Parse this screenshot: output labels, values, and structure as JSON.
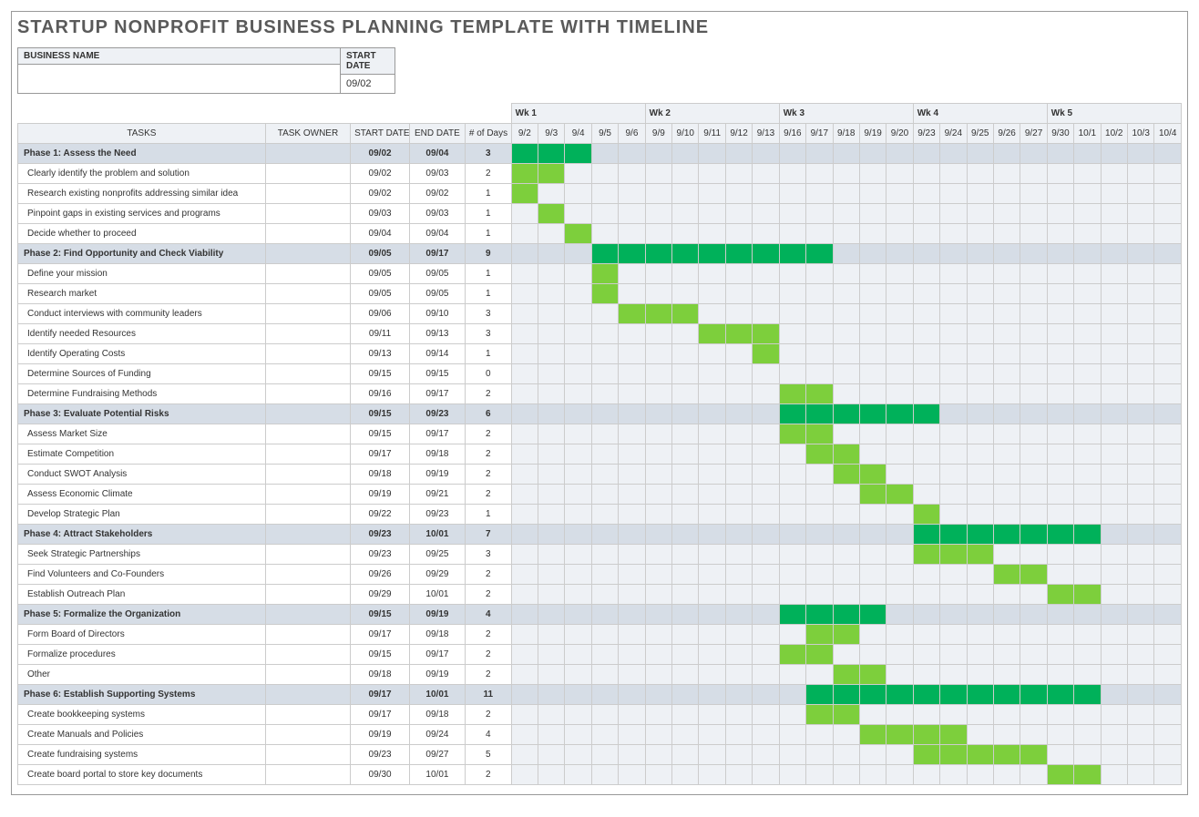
{
  "title": "STARTUP NONPROFIT BUSINESS PLANNING TEMPLATE WITH TIMELINE",
  "header": {
    "business_name_label": "BUSINESS NAME",
    "business_name_value": "",
    "start_date_label": "START DATE",
    "start_date_value": "09/02"
  },
  "columns": {
    "tasks": "TASKS",
    "owner": "TASK OWNER",
    "start": "START DATE",
    "end": "END DATE",
    "days": "# of Days"
  },
  "weeks": [
    "Wk 1",
    "Wk 2",
    "Wk 3",
    "Wk 4",
    "Wk 5"
  ],
  "dates": [
    "9/2",
    "9/3",
    "9/4",
    "9/5",
    "9/6",
    "9/9",
    "9/10",
    "9/11",
    "9/12",
    "9/13",
    "9/16",
    "9/17",
    "9/18",
    "9/19",
    "9/20",
    "9/23",
    "9/24",
    "9/25",
    "9/26",
    "9/27",
    "9/30",
    "10/1",
    "10/2",
    "10/3",
    "10/4"
  ],
  "colors": {
    "phase_bar": "#00b15a",
    "task_bar": "#7dcf3c",
    "phase_row_bg": "#d6dde6",
    "header_bg": "#eef1f5",
    "gantt_bg": "#eef1f5",
    "border": "#cccccc"
  },
  "rows": [
    {
      "type": "phase",
      "name": "Phase 1: Assess the Need",
      "owner": "",
      "start": "09/02",
      "end": "09/04",
      "days": "3",
      "bar": [
        0,
        2
      ]
    },
    {
      "type": "task",
      "name": "Clearly identify the problem and solution",
      "owner": "",
      "start": "09/02",
      "end": "09/03",
      "days": "2",
      "bar": [
        0,
        1
      ]
    },
    {
      "type": "task",
      "name": "Research existing nonprofits addressing similar idea",
      "owner": "",
      "start": "09/02",
      "end": "09/02",
      "days": "1",
      "bar": [
        0,
        0
      ]
    },
    {
      "type": "task",
      "name": "Pinpoint gaps in existing services and programs",
      "owner": "",
      "start": "09/03",
      "end": "09/03",
      "days": "1",
      "bar": [
        1,
        1
      ]
    },
    {
      "type": "task",
      "name": "Decide whether to proceed",
      "owner": "",
      "start": "09/04",
      "end": "09/04",
      "days": "1",
      "bar": [
        2,
        2
      ]
    },
    {
      "type": "phase",
      "name": "Phase 2: Find Opportunity and Check Viability",
      "owner": "",
      "start": "09/05",
      "end": "09/17",
      "days": "9",
      "bar": [
        3,
        11
      ]
    },
    {
      "type": "task",
      "name": "Define your mission",
      "owner": "",
      "start": "09/05",
      "end": "09/05",
      "days": "1",
      "bar": [
        3,
        3
      ]
    },
    {
      "type": "task",
      "name": "Research market",
      "owner": "",
      "start": "09/05",
      "end": "09/05",
      "days": "1",
      "bar": [
        3,
        3
      ]
    },
    {
      "type": "task",
      "name": "Conduct interviews with community leaders",
      "owner": "",
      "start": "09/06",
      "end": "09/10",
      "days": "3",
      "bar": [
        4,
        6
      ]
    },
    {
      "type": "task",
      "name": "Identify needed Resources",
      "owner": "",
      "start": "09/11",
      "end": "09/13",
      "days": "3",
      "bar": [
        7,
        9
      ]
    },
    {
      "type": "task",
      "name": "Identify Operating Costs",
      "owner": "",
      "start": "09/13",
      "end": "09/14",
      "days": "1",
      "bar": [
        9,
        9
      ]
    },
    {
      "type": "task",
      "name": "Determine Sources of Funding",
      "owner": "",
      "start": "09/15",
      "end": "09/15",
      "days": "0",
      "bar": null
    },
    {
      "type": "task",
      "name": "Determine Fundraising Methods",
      "owner": "",
      "start": "09/16",
      "end": "09/17",
      "days": "2",
      "bar": [
        10,
        11
      ]
    },
    {
      "type": "phase",
      "name": "Phase 3: Evaluate Potential Risks",
      "owner": "",
      "start": "09/15",
      "end": "09/23",
      "days": "6",
      "bar": [
        10,
        15
      ]
    },
    {
      "type": "task",
      "name": "Assess Market Size",
      "owner": "",
      "start": "09/15",
      "end": "09/17",
      "days": "2",
      "bar": [
        10,
        11
      ]
    },
    {
      "type": "task",
      "name": "Estimate Competition",
      "owner": "",
      "start": "09/17",
      "end": "09/18",
      "days": "2",
      "bar": [
        11,
        12
      ]
    },
    {
      "type": "task",
      "name": "Conduct SWOT Analysis",
      "owner": "",
      "start": "09/18",
      "end": "09/19",
      "days": "2",
      "bar": [
        12,
        13
      ]
    },
    {
      "type": "task",
      "name": "Assess Economic Climate",
      "owner": "",
      "start": "09/19",
      "end": "09/21",
      "days": "2",
      "bar": [
        13,
        14
      ]
    },
    {
      "type": "task",
      "name": "Develop Strategic Plan",
      "owner": "",
      "start": "09/22",
      "end": "09/23",
      "days": "1",
      "bar": [
        15,
        15
      ]
    },
    {
      "type": "phase",
      "name": "Phase 4: Attract Stakeholders",
      "owner": "",
      "start": "09/23",
      "end": "10/01",
      "days": "7",
      "bar": [
        15,
        21
      ]
    },
    {
      "type": "task",
      "name": "Seek Strategic Partnerships",
      "owner": "",
      "start": "09/23",
      "end": "09/25",
      "days": "3",
      "bar": [
        15,
        17
      ]
    },
    {
      "type": "task",
      "name": "Find Volunteers and Co-Founders",
      "owner": "",
      "start": "09/26",
      "end": "09/29",
      "days": "2",
      "bar": [
        18,
        19
      ]
    },
    {
      "type": "task",
      "name": "Establish Outreach Plan",
      "owner": "",
      "start": "09/29",
      "end": "10/01",
      "days": "2",
      "bar": [
        20,
        21
      ]
    },
    {
      "type": "phase",
      "name": "Phase 5: Formalize the Organization",
      "owner": "",
      "start": "09/15",
      "end": "09/19",
      "days": "4",
      "bar": [
        10,
        13
      ]
    },
    {
      "type": "task",
      "name": "Form Board of Directors",
      "owner": "",
      "start": "09/17",
      "end": "09/18",
      "days": "2",
      "bar": [
        11,
        12
      ]
    },
    {
      "type": "task",
      "name": "Formalize procedures",
      "owner": "",
      "start": "09/15",
      "end": "09/17",
      "days": "2",
      "bar": [
        10,
        11
      ]
    },
    {
      "type": "task",
      "name": "Other",
      "owner": "",
      "start": "09/18",
      "end": "09/19",
      "days": "2",
      "bar": [
        12,
        13
      ]
    },
    {
      "type": "phase",
      "name": "Phase 6: Establish Supporting Systems",
      "owner": "",
      "start": "09/17",
      "end": "10/01",
      "days": "11",
      "bar": [
        11,
        21
      ]
    },
    {
      "type": "task",
      "name": "Create bookkeeping systems",
      "owner": "",
      "start": "09/17",
      "end": "09/18",
      "days": "2",
      "bar": [
        11,
        12
      ]
    },
    {
      "type": "task",
      "name": "Create Manuals and Policies",
      "owner": "",
      "start": "09/19",
      "end": "09/24",
      "days": "4",
      "bar": [
        13,
        16
      ]
    },
    {
      "type": "task",
      "name": "Create fundraising systems",
      "owner": "",
      "start": "09/23",
      "end": "09/27",
      "days": "5",
      "bar": [
        15,
        19
      ]
    },
    {
      "type": "task",
      "name": "Create board portal to store key documents",
      "owner": "",
      "start": "09/30",
      "end": "10/01",
      "days": "2",
      "bar": [
        20,
        21
      ]
    }
  ]
}
